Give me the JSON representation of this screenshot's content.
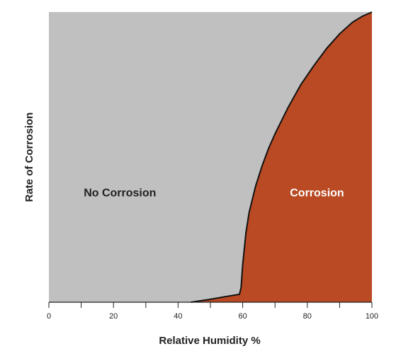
{
  "chart_data": {
    "type": "area",
    "xlabel": "Relative Humidity %",
    "ylabel": "Rate of Corrosion",
    "xlim": [
      0,
      100
    ],
    "ylim": [
      0,
      100
    ],
    "x_ticks": [
      "0",
      "20",
      "40",
      "60",
      "80",
      "100"
    ],
    "y_ticks": [],
    "grid": false,
    "series": [
      {
        "name": "Corrosion",
        "x": [
          44,
          50,
          55,
          59,
          59.5,
          60,
          61,
          62,
          64,
          66,
          68,
          70,
          74,
          78,
          82,
          86,
          90,
          94,
          97,
          100
        ],
        "y": [
          0,
          1,
          2,
          2.7,
          5,
          13,
          24,
          31,
          40,
          47,
          53,
          58,
          67,
          75,
          81.5,
          87.5,
          92.5,
          96.5,
          98.5,
          100
        ]
      }
    ],
    "annotations": [
      "No Corrosion",
      "Corrosion"
    ],
    "colors": {
      "background_region": "#c0c0c0",
      "corrosion_region": "#b94a23",
      "curve": "#111111",
      "axis": "#222222",
      "label_dark": "#222222",
      "label_light": "#ffffff"
    }
  }
}
